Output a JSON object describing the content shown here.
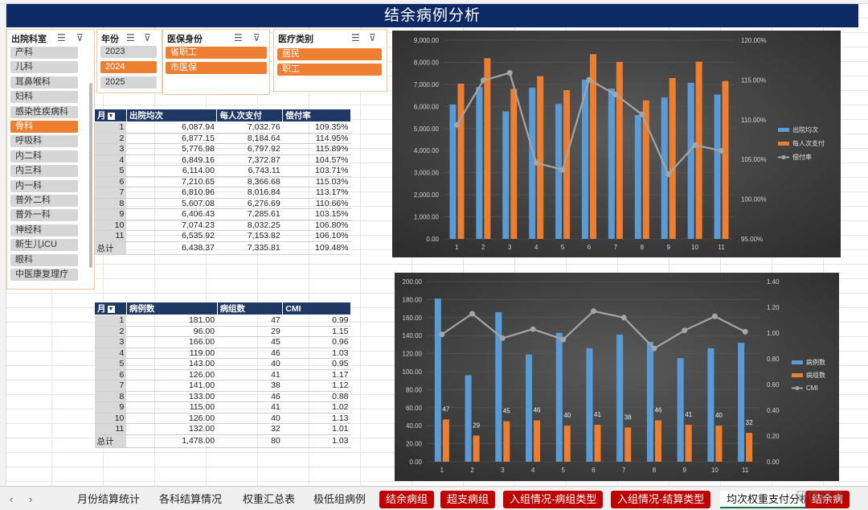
{
  "title": "结余病例分析",
  "dept_slicer": {
    "header": "出院科室",
    "items": [
      {
        "label": "产科",
        "selected": false
      },
      {
        "label": "儿科",
        "selected": false
      },
      {
        "label": "耳鼻喉科",
        "selected": false
      },
      {
        "label": "妇科",
        "selected": false
      },
      {
        "label": "感染性疾病科",
        "selected": false
      },
      {
        "label": "骨科",
        "selected": true
      },
      {
        "label": "呼吸科",
        "selected": false
      },
      {
        "label": "内二科",
        "selected": false
      },
      {
        "label": "内三科",
        "selected": false
      },
      {
        "label": "内一科",
        "selected": false
      },
      {
        "label": "普外二科",
        "selected": false
      },
      {
        "label": "普外一科",
        "selected": false
      },
      {
        "label": "神经科",
        "selected": false
      },
      {
        "label": "新生儿ICU",
        "selected": false
      },
      {
        "label": "眼科",
        "selected": false
      },
      {
        "label": "中医康复理疗",
        "selected": false
      }
    ]
  },
  "year_slicer": {
    "header": "年份",
    "items": [
      {
        "label": "2023",
        "selected": false
      },
      {
        "label": "2024",
        "selected": true
      },
      {
        "label": "2025",
        "selected": false
      }
    ]
  },
  "insurance_slicer": {
    "header": "医保身份",
    "items": [
      {
        "label": "省职工",
        "selected": true
      },
      {
        "label": "市医保",
        "selected": true
      }
    ]
  },
  "medtype_slicer": {
    "header": "医疗类别",
    "items": [
      {
        "label": "居民",
        "selected": true
      },
      {
        "label": "职工",
        "selected": true
      }
    ]
  },
  "table1": {
    "headers": [
      "月",
      "出院均次",
      "每人次支付",
      "偿付率"
    ],
    "rows": [
      [
        "1",
        "6,087.94",
        "7,032.76",
        "109.35%"
      ],
      [
        "2",
        "6,877.15",
        "8,184.64",
        "114.95%"
      ],
      [
        "3",
        "5,776.98",
        "6,797.92",
        "115.89%"
      ],
      [
        "4",
        "6,849.16",
        "7,372.87",
        "104.57%"
      ],
      [
        "5",
        "6,114.00",
        "6,743.11",
        "103.71%"
      ],
      [
        "6",
        "7,210.65",
        "8,366.68",
        "115.03%"
      ],
      [
        "7",
        "6,810.96",
        "8,016.84",
        "113.17%"
      ],
      [
        "8",
        "5,607.08",
        "6,276.69",
        "110.66%"
      ],
      [
        "9",
        "6,406.43",
        "7,285.61",
        "103.15%"
      ],
      [
        "10",
        "7,074.23",
        "8,032.25",
        "106.80%"
      ],
      [
        "11",
        "6,535.92",
        "7,153.82",
        "106.10%"
      ]
    ],
    "total": [
      "总计",
      "6,438.37",
      "7,335.81",
      "109.48%"
    ]
  },
  "table2": {
    "headers": [
      "月",
      "病例数",
      "病组数",
      "CMI"
    ],
    "rows": [
      [
        "1",
        "181.00",
        "47",
        "0.99"
      ],
      [
        "2",
        "96.00",
        "29",
        "1.15"
      ],
      [
        "3",
        "166.00",
        "45",
        "0.96"
      ],
      [
        "4",
        "119.00",
        "46",
        "1.03"
      ],
      [
        "5",
        "143.00",
        "40",
        "0.95"
      ],
      [
        "6",
        "126.00",
        "41",
        "1.17"
      ],
      [
        "7",
        "141.00",
        "38",
        "1.12"
      ],
      [
        "8",
        "133.00",
        "46",
        "0.88"
      ],
      [
        "9",
        "115.00",
        "41",
        "1.02"
      ],
      [
        "10",
        "126.00",
        "40",
        "1.13"
      ],
      [
        "11",
        "132.00",
        "32",
        "1.01"
      ]
    ],
    "total": [
      "总计",
      "1,478.00",
      "80",
      "1.03"
    ]
  },
  "chart_data": [
    {
      "type": "bar",
      "categories": [
        "1",
        "2",
        "3",
        "4",
        "5",
        "6",
        "7",
        "8",
        "9",
        "10",
        "11"
      ],
      "series": [
        {
          "name": "出院均次",
          "kind": "bar",
          "axis": "left",
          "color": "#5b9bd5",
          "values": [
            6087.94,
            6877.15,
            5776.98,
            6849.16,
            6114.0,
            7210.65,
            6810.96,
            5607.08,
            6406.43,
            7074.23,
            6535.92
          ]
        },
        {
          "name": "每人次支付",
          "kind": "bar",
          "axis": "left",
          "color": "#ed7d31",
          "values": [
            7032.76,
            8184.64,
            6797.92,
            7372.87,
            6743.11,
            8366.68,
            8016.84,
            6276.69,
            7285.61,
            8032.25,
            7153.82
          ]
        },
        {
          "name": "偿付率",
          "kind": "line",
          "axis": "right",
          "color": "#a5a5a5",
          "values": [
            109.35,
            114.95,
            115.89,
            104.57,
            103.71,
            115.03,
            113.17,
            110.66,
            103.15,
            106.8,
            106.1
          ]
        }
      ],
      "y_left": {
        "min": 0,
        "max": 9000,
        "step": 1000,
        "ticks": [
          "0.00",
          "1,000.00",
          "2,000.00",
          "3,000.00",
          "4,000.00",
          "5,000.00",
          "6,000.00",
          "7,000.00",
          "8,000.00",
          "9,000.00"
        ]
      },
      "y_right": {
        "min": 95,
        "max": 120,
        "step": 5,
        "ticks": [
          "95.00%",
          "100.00%",
          "105.00%",
          "110.00%",
          "115.00%",
          "120.00%"
        ]
      },
      "legend": "right"
    },
    {
      "type": "bar",
      "categories": [
        "1",
        "2",
        "3",
        "4",
        "5",
        "6",
        "7",
        "8",
        "9",
        "10",
        "11"
      ],
      "series": [
        {
          "name": "病例数",
          "kind": "bar",
          "axis": "left",
          "color": "#5b9bd5",
          "values": [
            181,
            96,
            166,
            119,
            143,
            126,
            141,
            133,
            115,
            126,
            132
          ]
        },
        {
          "name": "病组数",
          "kind": "bar",
          "axis": "left",
          "color": "#ed7d31",
          "values": [
            47,
            29,
            45,
            46,
            40,
            41,
            38,
            46,
            41,
            40,
            32
          ],
          "data_labels": [
            "47",
            "29",
            "45",
            "46",
            "40",
            "41",
            "38",
            "46",
            "41",
            "40",
            "32"
          ]
        },
        {
          "name": "CMI",
          "kind": "line",
          "axis": "right",
          "color": "#a5a5a5",
          "values": [
            0.99,
            1.15,
            0.96,
            1.03,
            0.95,
            1.17,
            1.12,
            0.88,
            1.02,
            1.13,
            1.01
          ]
        }
      ],
      "y_left": {
        "min": 0,
        "max": 200,
        "step": 20,
        "ticks": [
          "0.00",
          "20.00",
          "40.00",
          "60.00",
          "80.00",
          "100.00",
          "120.00",
          "140.00",
          "160.00",
          "180.00",
          "200.00"
        ]
      },
      "y_right": {
        "min": 0,
        "max": 1.4,
        "step": 0.2,
        "ticks": [
          "0.00",
          "0.20",
          "0.40",
          "0.60",
          "0.80",
          "1.00",
          "1.20",
          "1.40"
        ]
      },
      "legend": "right"
    }
  ],
  "sheet_tabs": [
    {
      "label": "月份结算统计",
      "style": "plain"
    },
    {
      "label": "各科结算情况",
      "style": "plain"
    },
    {
      "label": "权重汇总表",
      "style": "plain"
    },
    {
      "label": "极低组病例",
      "style": "plain"
    },
    {
      "label": "结余病组",
      "style": "red"
    },
    {
      "label": "超支病组",
      "style": "red"
    },
    {
      "label": "入组情况-病组类型",
      "style": "red"
    },
    {
      "label": "入组情况-结算类型",
      "style": "red"
    },
    {
      "label": "均次权重支付分析",
      "style": "selected"
    },
    {
      "label": "结余病",
      "style": "red"
    }
  ],
  "nav": {
    "prev": "‹",
    "next": "›"
  },
  "watermark": "研值进击"
}
